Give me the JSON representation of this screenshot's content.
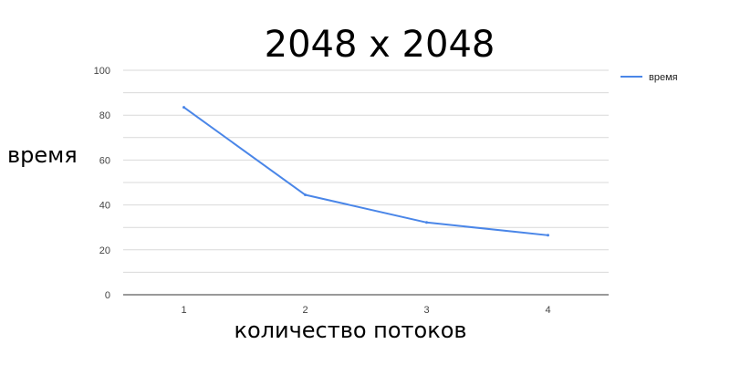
{
  "chart_data": {
    "type": "line",
    "title": "2048 x 2048",
    "xlabel": "количество потоков",
    "ylabel": "время",
    "categories": [
      "1",
      "2",
      "3",
      "4"
    ],
    "series": [
      {
        "name": "время",
        "values": [
          83.5,
          44.5,
          32.2,
          26.5
        ],
        "color": "#4a86e8"
      }
    ],
    "ylim": [
      0,
      100
    ],
    "yticks": [
      "0",
      "20",
      "40",
      "60",
      "80",
      "100"
    ],
    "grid": true,
    "legend": "right"
  }
}
